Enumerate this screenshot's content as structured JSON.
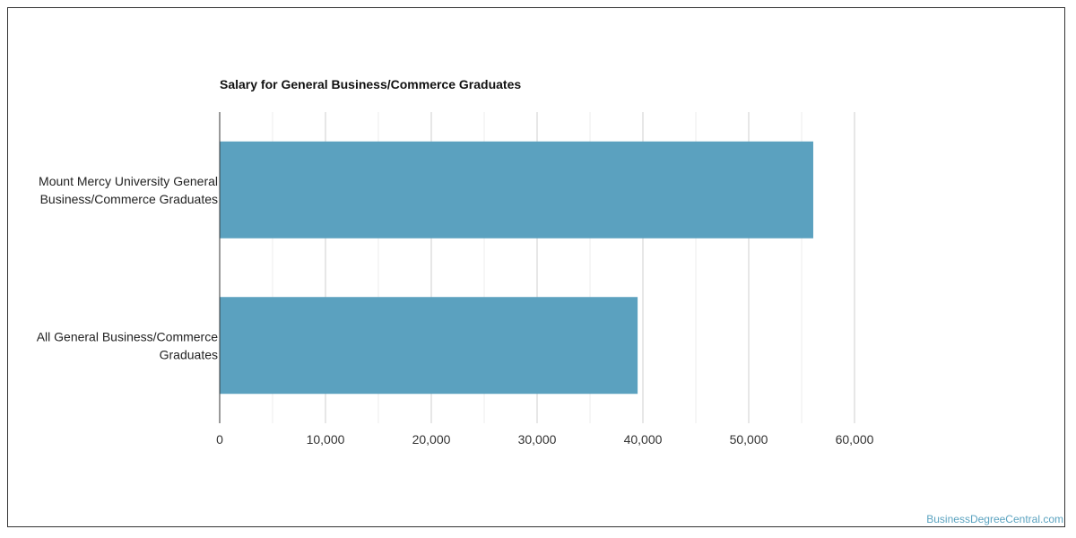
{
  "chart_data": {
    "type": "bar",
    "orientation": "horizontal",
    "title": "Salary for General Business/Commerce Graduates",
    "xlabel": "",
    "ylabel": "",
    "categories": [
      [
        "Mount Mercy University General",
        "Business/Commerce Graduates"
      ],
      [
        "All General Business/Commerce",
        "Graduates"
      ]
    ],
    "values": [
      56100,
      39500
    ],
    "xlim": [
      0,
      60000
    ],
    "xticks": [
      0,
      10000,
      20000,
      30000,
      40000,
      50000,
      60000
    ],
    "xtick_labels": [
      "0",
      "10,000",
      "20,000",
      "30,000",
      "40,000",
      "50,000",
      "60,000"
    ],
    "grid": true,
    "legend": "none",
    "bar_color": "#5ba1bf"
  },
  "source": "BusinessDegreeCentral.com"
}
